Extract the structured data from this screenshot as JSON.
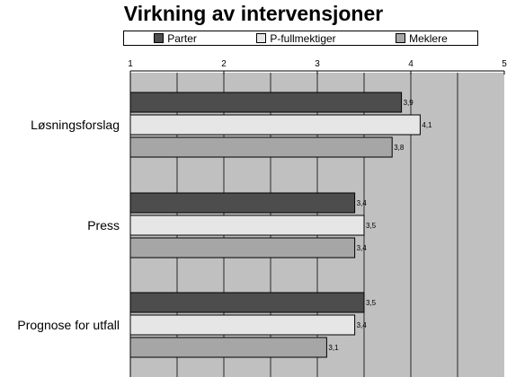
{
  "chart_data": {
    "type": "bar",
    "orientation": "horizontal",
    "title": "Virkning av intervensjoner",
    "categories": [
      "Løsningsforslag",
      "Press",
      "Prognose for utfall"
    ],
    "series": [
      {
        "name": "Parter",
        "color": "#4d4d4d",
        "values": [
          3.9,
          3.4,
          3.5
        ],
        "labels": [
          "3,9",
          "3,4",
          "3,5"
        ]
      },
      {
        "name": "P-fullmektiger",
        "color": "#e6e6e6",
        "values": [
          4.1,
          3.5,
          3.4
        ],
        "labels": [
          "4,1",
          "3,5",
          "3,4"
        ]
      },
      {
        "name": "Meklere",
        "color": "#a6a6a6",
        "values": [
          3.8,
          3.4,
          3.1
        ],
        "labels": [
          "3,8",
          "3,4",
          "3,1"
        ]
      }
    ],
    "xlim": [
      1,
      5
    ],
    "xticks": [
      "1",
      "2",
      "3",
      "4",
      "5"
    ],
    "xaxis_position": "top",
    "grid": true,
    "legend_position": "top",
    "plot_background": "#c0c0c0"
  }
}
